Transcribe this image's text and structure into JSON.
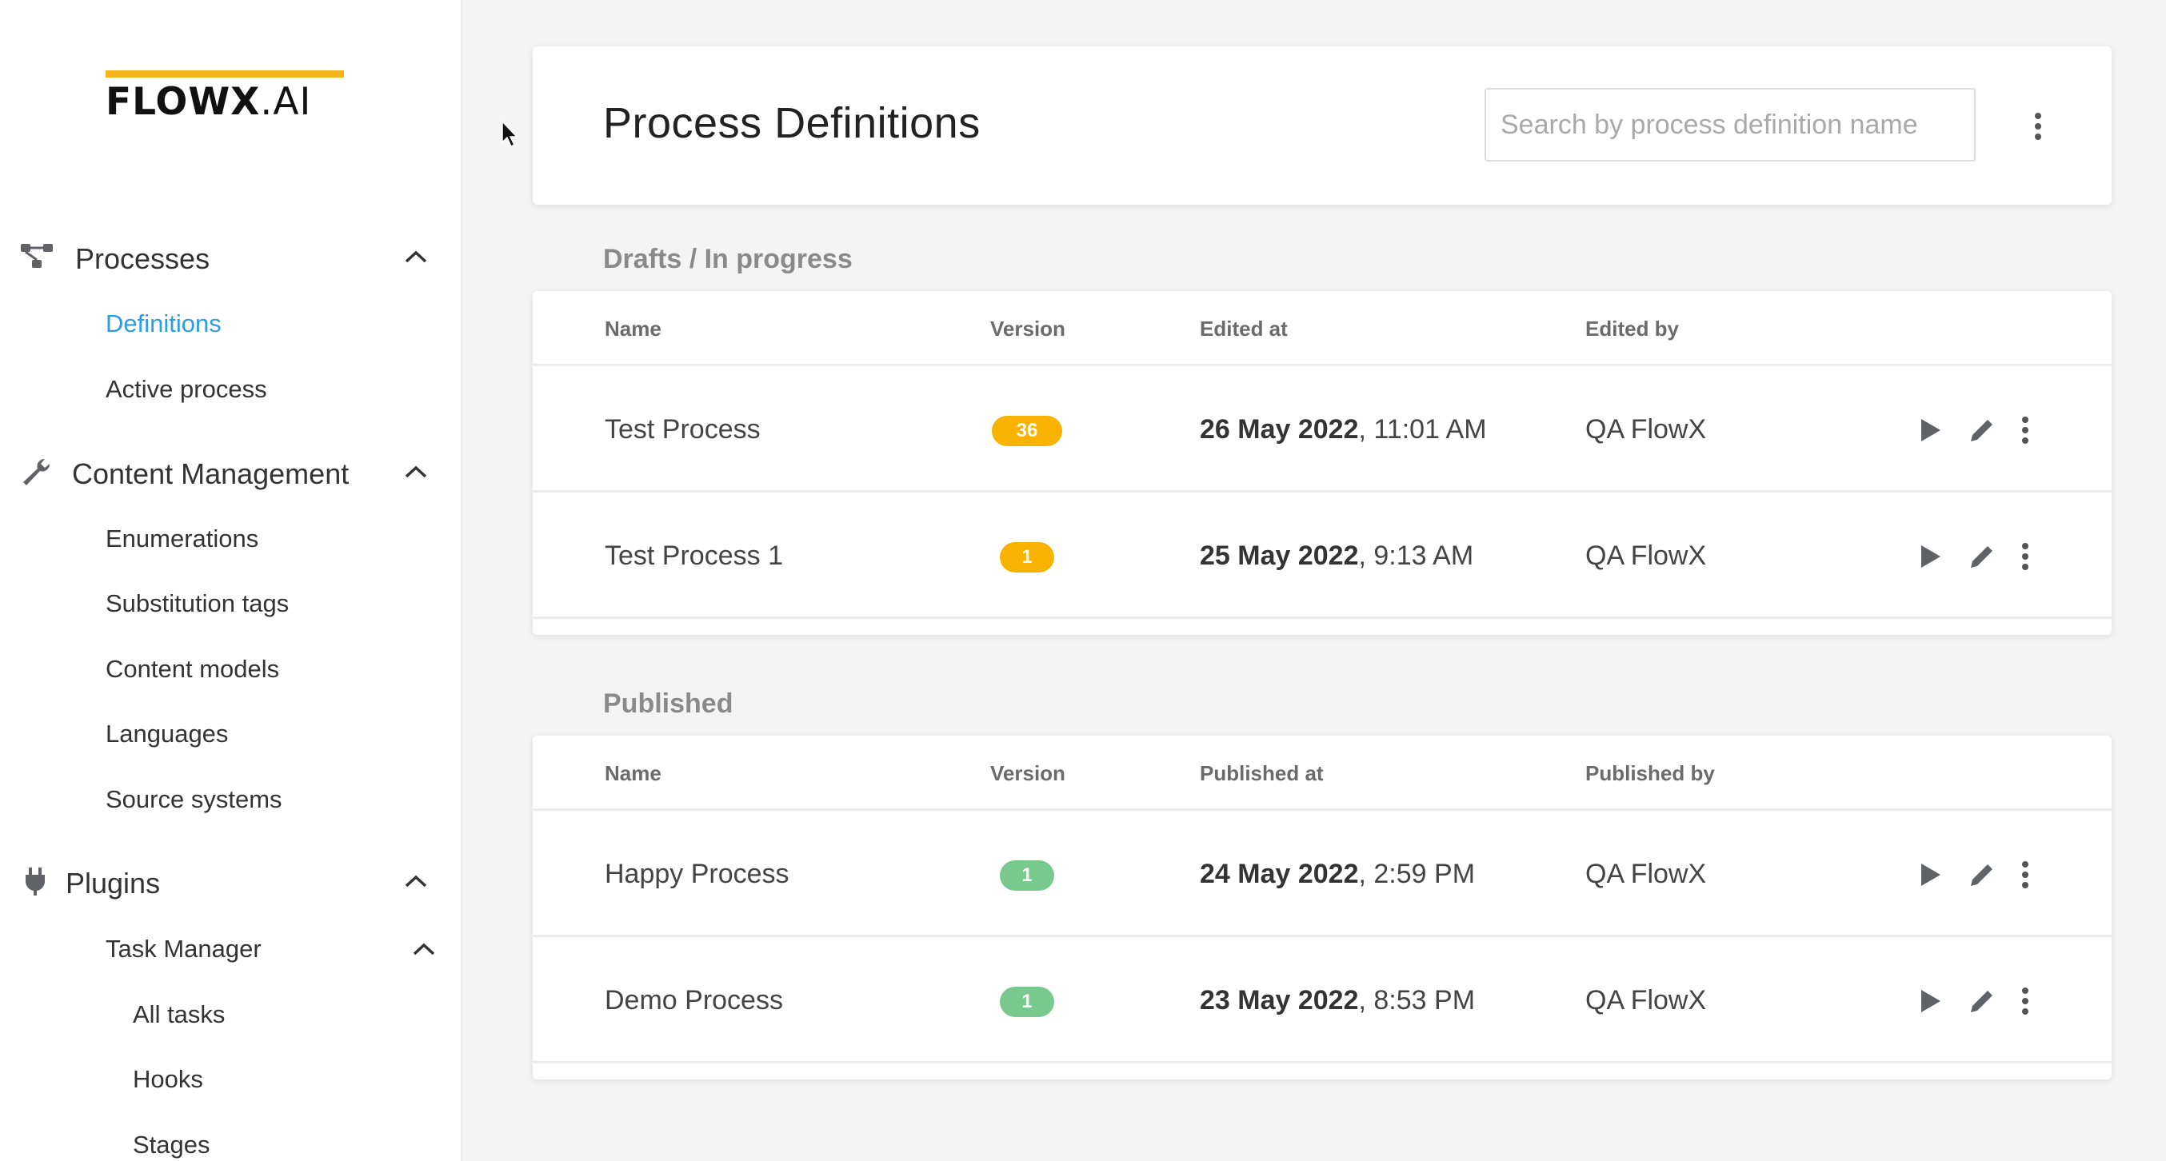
{
  "brand": {
    "logo_text_bold": "FLOWX",
    "logo_text_light": ".AI",
    "accent_color": "#f6b41d"
  },
  "sidebar": {
    "groups": [
      {
        "label": "Processes",
        "icon": "process-flow-icon",
        "expanded": true,
        "items": [
          {
            "label": "Definitions",
            "active": true
          },
          {
            "label": "Active process",
            "active": false
          }
        ]
      },
      {
        "label": "Content Management",
        "icon": "wrench-icon",
        "expanded": true,
        "items": [
          {
            "label": "Enumerations"
          },
          {
            "label": "Substitution tags"
          },
          {
            "label": "Content models"
          },
          {
            "label": "Languages"
          },
          {
            "label": "Source systems"
          }
        ]
      },
      {
        "label": "Plugins",
        "icon": "plug-icon",
        "expanded": true,
        "items": [
          {
            "label": "Task Manager",
            "expanded": true,
            "children": [
              {
                "label": "All tasks"
              },
              {
                "label": "Hooks"
              },
              {
                "label": "Stages"
              }
            ]
          }
        ]
      }
    ]
  },
  "header": {
    "title": "Process Definitions",
    "search_placeholder": "Search by process definition name",
    "search_value": ""
  },
  "drafts": {
    "title": "Drafts / In progress",
    "columns": [
      "Name",
      "Version",
      "Edited at",
      "Edited by"
    ],
    "rows": [
      {
        "name": "Test Process",
        "version": "36",
        "date": "26 May 2022",
        "time": ", 11:01 AM",
        "by": "QA FlowX"
      },
      {
        "name": "Test Process 1",
        "version": "1",
        "date": "25 May 2022",
        "time": ", 9:13 AM",
        "by": "QA FlowX"
      }
    ],
    "badge_color": "#f8b200"
  },
  "published": {
    "title": "Published",
    "columns": [
      "Name",
      "Version",
      "Published at",
      "Published by"
    ],
    "rows": [
      {
        "name": "Happy Process",
        "version": "1",
        "date": "24 May 2022",
        "time": ", 2:59 PM",
        "by": "QA FlowX"
      },
      {
        "name": "Demo Process",
        "version": "1",
        "date": "23 May 2022",
        "time": ", 8:53 PM",
        "by": "QA FlowX"
      }
    ],
    "badge_color": "#79c98e"
  },
  "colors": {
    "active_nav": "#2c9de3",
    "icon_gray": "#5f6368"
  }
}
